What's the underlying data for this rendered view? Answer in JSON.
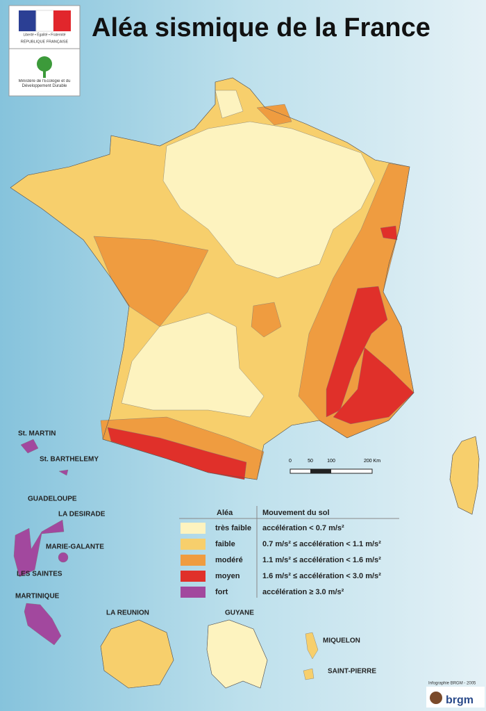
{
  "header": {
    "title": "Aléa sismique de la France",
    "motto": "Liberté • Égalité • Fraternité",
    "republic": "RÉPUBLIQUE FRANÇAISE",
    "ministry": "Ministère de l'Écologie et du Développement Durable"
  },
  "scale": {
    "labels": [
      "0",
      "50",
      "100",
      "200 Km"
    ]
  },
  "legend": {
    "headers": [
      "Aléa",
      "Mouvement du sol"
    ],
    "rows": [
      {
        "level": "très faible",
        "range": "accélération < 0.7 m/s²",
        "color": "#fdf3bf"
      },
      {
        "level": "faible",
        "range": "0.7 m/s² ≤ accélération < 1.1 m/s²",
        "color": "#f7cf6c"
      },
      {
        "level": "modéré",
        "range": "1.1 m/s² ≤ accélération < 1.6 m/s²",
        "color": "#ef9c40"
      },
      {
        "level": "moyen",
        "range": "1.6 m/s² ≤ accélération < 3.0 m/s²",
        "color": "#e0302a"
      },
      {
        "level": "fort",
        "range": "accélération ≥ 3.0 m/s²",
        "color": "#a2489e"
      }
    ]
  },
  "territories": [
    "St. MARTIN",
    "St. BARTHELEMY",
    "GUADELOUPE",
    "LA DESIRADE",
    "MARIE-GALANTE",
    "LES SAINTES",
    "MARTINIQUE",
    "LA REUNION",
    "GUYANE",
    "MIQUELON",
    "SAINT-PIERRE"
  ],
  "credit": "Infographie BRGM - 2005",
  "logo": "brgm"
}
